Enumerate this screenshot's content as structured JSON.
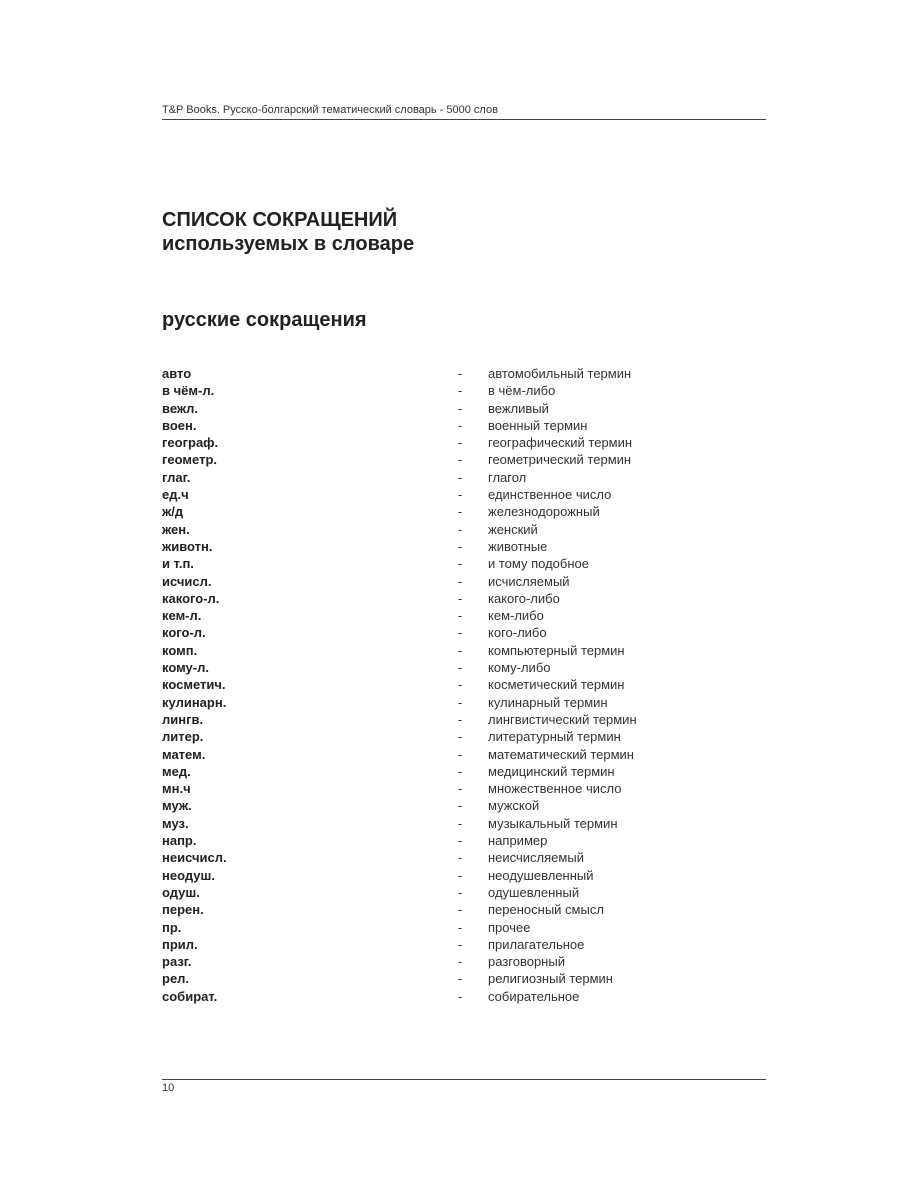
{
  "header": {
    "running_title": "T&P Books. Русско-болгарский тематический словарь - 5000 слов"
  },
  "title": {
    "line1": "СПИСОК СОКРАЩЕНИЙ",
    "line2": "используемых в словаре"
  },
  "section": {
    "heading": "русские сокращения"
  },
  "abbreviations": [
    {
      "abbr": "авто",
      "meaning": "автомобильный термин"
    },
    {
      "abbr": "в чём-л.",
      "meaning": "в чём-либо"
    },
    {
      "abbr": "вежл.",
      "meaning": "вежливый"
    },
    {
      "abbr": "воен.",
      "meaning": "военный термин"
    },
    {
      "abbr": "географ.",
      "meaning": "географический термин"
    },
    {
      "abbr": "геометр.",
      "meaning": "геометрический термин"
    },
    {
      "abbr": "глаг.",
      "meaning": "глагол"
    },
    {
      "abbr": "ед.ч",
      "meaning": "единственное число"
    },
    {
      "abbr": "ж/д",
      "meaning": "железнодорожный"
    },
    {
      "abbr": "жен.",
      "meaning": "женский"
    },
    {
      "abbr": "животн.",
      "meaning": "животные"
    },
    {
      "abbr": "и т.п.",
      "meaning": "и тому подобное"
    },
    {
      "abbr": "исчисл.",
      "meaning": "исчисляемый"
    },
    {
      "abbr": "какого-л.",
      "meaning": "какого-либо"
    },
    {
      "abbr": "кем-л.",
      "meaning": "кем-либо"
    },
    {
      "abbr": "кого-л.",
      "meaning": "кого-либо"
    },
    {
      "abbr": "комп.",
      "meaning": "компьютерный термин"
    },
    {
      "abbr": "кому-л.",
      "meaning": "кому-либо"
    },
    {
      "abbr": "косметич.",
      "meaning": "косметический термин"
    },
    {
      "abbr": "кулинарн.",
      "meaning": "кулинарный термин"
    },
    {
      "abbr": "лингв.",
      "meaning": "лингвистический термин"
    },
    {
      "abbr": "литер.",
      "meaning": "литературный термин"
    },
    {
      "abbr": "матем.",
      "meaning": "математический термин"
    },
    {
      "abbr": "мед.",
      "meaning": "медицинский термин"
    },
    {
      "abbr": "мн.ч",
      "meaning": "множественное число"
    },
    {
      "abbr": "муж.",
      "meaning": "мужской"
    },
    {
      "abbr": "муз.",
      "meaning": "музыкальный термин"
    },
    {
      "abbr": "напр.",
      "meaning": "например"
    },
    {
      "abbr": "неисчисл.",
      "meaning": "неисчисляемый"
    },
    {
      "abbr": "неодуш.",
      "meaning": "неодушевленный"
    },
    {
      "abbr": "одуш.",
      "meaning": "одушевленный"
    },
    {
      "abbr": "перен.",
      "meaning": "переносный смысл"
    },
    {
      "abbr": "пр.",
      "meaning": "прочее"
    },
    {
      "abbr": "прил.",
      "meaning": "прилагательное"
    },
    {
      "abbr": "разг.",
      "meaning": "разговорный"
    },
    {
      "abbr": "рел.",
      "meaning": "религиозный термин"
    },
    {
      "abbr": "собират.",
      "meaning": "собирательное"
    }
  ],
  "separator": "-",
  "footer": {
    "page_number": "10"
  }
}
